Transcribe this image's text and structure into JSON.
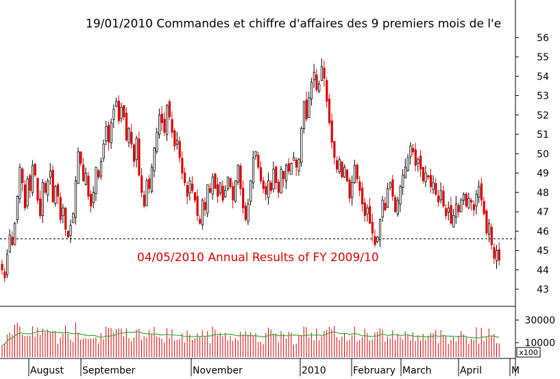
{
  "chart_data": {
    "type": "candlestick",
    "title_annotation": "19/01/2010 Commandes et chiffre d'affaires des 9 premiers mois de l'e",
    "sub_annotation": "04/05/2010 Annual Results of FY 2009/10",
    "reference_level": 45.6,
    "price_axis": {
      "ticks": [
        "56",
        "55",
        "54",
        "53",
        "52",
        "51",
        "50",
        "49",
        "48",
        "47",
        "46",
        "45",
        "44",
        "43"
      ],
      "ylim": [
        42.2,
        56.5
      ]
    },
    "volume_axis": {
      "ticks": [
        "30000",
        "10000"
      ],
      "unit_label": "x100",
      "ylim": [
        0,
        40000
      ]
    },
    "x_labels": [
      "August",
      "September",
      "November",
      "2010",
      "February",
      "March",
      "April",
      "M"
    ],
    "colors": {
      "up": "#000000",
      "down": "#dd0000",
      "volume_bar": "#dd0000",
      "volume_avg": "#33aa33",
      "grid": "#000000"
    },
    "closes": [
      44.0,
      43.6,
      44.8,
      45.8,
      45.3,
      46.4,
      47.8,
      49.3,
      48.5,
      47.2,
      48.7,
      48.1,
      49.4,
      48.9,
      47.6,
      46.8,
      48.5,
      48.0,
      48.6,
      49.1,
      47.5,
      48.3,
      47.8,
      46.6,
      47.2,
      46.1,
      45.7,
      46.3,
      46.9,
      48.6,
      50.1,
      49.5,
      48.6,
      49.0,
      47.8,
      47.3,
      48.0,
      49.3,
      48.8,
      49.6,
      50.5,
      51.4,
      50.6,
      51.6,
      52.3,
      52.7,
      51.7,
      52.4,
      51.9,
      50.7,
      51.3,
      50.5,
      49.6,
      50.8,
      48.9,
      48.0,
      47.3,
      48.6,
      48.2,
      49.3,
      50.3,
      51.1,
      52.0,
      51.6,
      51.1,
      52.5,
      51.9,
      51.1,
      50.4,
      50.7,
      49.8,
      49.0,
      48.5,
      47.8,
      48.6,
      48.1,
      47.6,
      46.8,
      46.4,
      47.6,
      47.1,
      48.4,
      48.0,
      48.8,
      48.2,
      47.8,
      48.5,
      47.6,
      48.1,
      48.8,
      48.3,
      47.6,
      48.6,
      49.4,
      48.2,
      47.2,
      46.6,
      47.4,
      48.6,
      49.8,
      50.1,
      49.3,
      48.6,
      48.2,
      47.9,
      48.6,
      48.1,
      49.2,
      48.5,
      48.0,
      49.2,
      48.7,
      49.4,
      49.1,
      49.5,
      49.8,
      49.3,
      49.7,
      51.3,
      52.7,
      51.8,
      52.9,
      53.7,
      54.2,
      53.3,
      53.6,
      54.5,
      53.9,
      52.7,
      51.6,
      50.6,
      49.8,
      49.2,
      49.7,
      48.8,
      49.3,
      48.6,
      47.7,
      48.5,
      49.4,
      48.7,
      48.1,
      47.4,
      46.8,
      47.2,
      46.4,
      45.9,
      45.3,
      45.7,
      46.6,
      47.6,
      47.1,
      48.2,
      48.5,
      47.8,
      47.0,
      47.6,
      48.3,
      48.9,
      49.3,
      49.8,
      50.4,
      50.1,
      49.4,
      49.7,
      49.2,
      48.6,
      49.0,
      48.8,
      48.3,
      48.5,
      47.9,
      47.5,
      48.1,
      47.3,
      46.8,
      47.2,
      46.4,
      46.8,
      47.4,
      47.0,
      47.6,
      47.9,
      47.3,
      47.7,
      47.5,
      47.1,
      47.9,
      48.3,
      47.6,
      46.9,
      45.9,
      46.4,
      45.3,
      44.6,
      45.0,
      44.5
    ]
  }
}
